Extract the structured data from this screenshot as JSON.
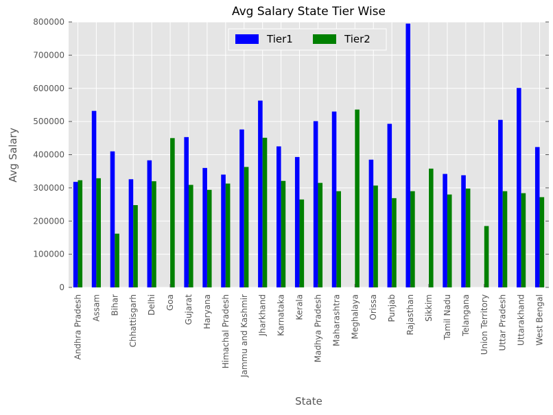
{
  "chart_data": {
    "type": "bar",
    "title": "Avg Salary State Tier Wise",
    "xlabel": "State",
    "ylabel": "Avg Salary",
    "ylim": [
      0,
      800000
    ],
    "yticks": [
      "0",
      "100000",
      "200000",
      "300000",
      "400000",
      "500000",
      "600000",
      "700000",
      "800000"
    ],
    "yticks_values": [
      0,
      100000,
      200000,
      300000,
      400000,
      500000,
      600000,
      700000,
      800000
    ],
    "grid": true,
    "legend_position": "top-center",
    "categories": [
      "Andhra Pradesh",
      "Assam",
      "Bihar",
      "Chhattisgarh",
      "Delhi",
      "Goa",
      "Gujarat",
      "Haryana",
      "Himachal Pradesh",
      "Jammu and Kashmir",
      "Jharkhand",
      "Karnataka",
      "Kerala",
      "Madhya Pradesh",
      "Maharashtra",
      "Meghalaya",
      "Orissa",
      "Punjab",
      "Rajasthan",
      "Sikkim",
      "Tamil Nadu",
      "Telangana",
      "Union Territory",
      "Uttar Pradesh",
      "Uttarakhand",
      "West Bengal"
    ],
    "series": [
      {
        "name": "Tier1",
        "color": "#0000ff",
        "values": [
          318000,
          532000,
          410000,
          326000,
          383000,
          null,
          453000,
          360000,
          340000,
          476000,
          563000,
          425000,
          393000,
          501000,
          530000,
          null,
          385000,
          493000,
          795000,
          null,
          342000,
          338000,
          null,
          505000,
          601000,
          423000
        ]
      },
      {
        "name": "Tier2",
        "color": "#008000",
        "values": [
          323000,
          329000,
          162000,
          248000,
          320000,
          450000,
          309000,
          294000,
          313000,
          363000,
          451000,
          321000,
          265000,
          315000,
          290000,
          536000,
          307000,
          269000,
          290000,
          358000,
          280000,
          298000,
          185000,
          290000,
          284000,
          272000
        ]
      }
    ]
  }
}
